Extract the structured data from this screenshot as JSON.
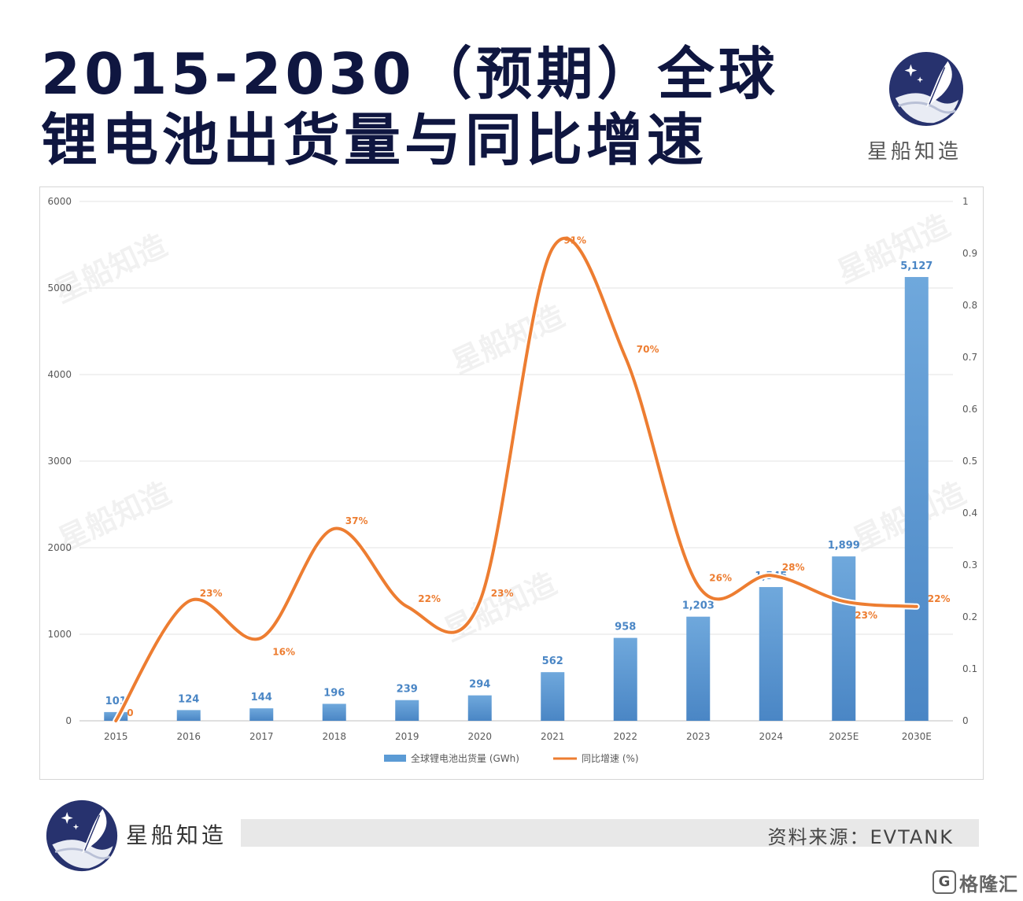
{
  "title": {
    "line1": "2015-2030（预期）全球",
    "line2": "锂电池出货量与同比增速"
  },
  "brand": {
    "name": "星船知造",
    "icon": "quill-moon-icon"
  },
  "source": "资料来源：EVTANK",
  "badge": {
    "mark": "G",
    "text": "格隆汇"
  },
  "watermark": "星船知造",
  "chart_data": {
    "type": "bar",
    "categories": [
      "2015",
      "2016",
      "2017",
      "2018",
      "2019",
      "2020",
      "2021",
      "2022",
      "2023",
      "2024",
      "2025E",
      "2030E"
    ],
    "series": [
      {
        "name": "全球锂电池出货量 (GWh)",
        "type": "bar",
        "axis": "left",
        "values": [
          101,
          124,
          144,
          196,
          239,
          294,
          562,
          958,
          1203,
          1545,
          1899,
          5127
        ],
        "labels": [
          "101",
          "124",
          "144",
          "196",
          "239",
          "294",
          "562",
          "958",
          "1,203",
          "1,545",
          "1,899",
          "5,127"
        ],
        "color": "#5b9bd5"
      },
      {
        "name": "同比增速 (%)",
        "type": "line",
        "axis": "right",
        "values": [
          0,
          0.23,
          0.16,
          0.37,
          0.22,
          0.23,
          0.91,
          0.7,
          0.26,
          0.28,
          0.23,
          0.22
        ],
        "labels": [
          "0",
          "23%",
          "16%",
          "37%",
          "22%",
          "23%",
          "91%",
          "70%",
          "26%",
          "28%",
          "23%",
          "22%"
        ],
        "color": "#ed7d31"
      }
    ],
    "ylim_left": [
      0,
      6000
    ],
    "yticks_left": [
      "0",
      "1000",
      "2000",
      "3000",
      "4000",
      "5000",
      "6000"
    ],
    "ylim_right": [
      0,
      1
    ],
    "yticks_right": [
      "0",
      "0.1",
      "0.2",
      "0.3",
      "0.4",
      "0.5",
      "0.6",
      "0.7",
      "0.8",
      "0.9",
      "1"
    ],
    "grid": true,
    "legend_position": "bottom"
  }
}
